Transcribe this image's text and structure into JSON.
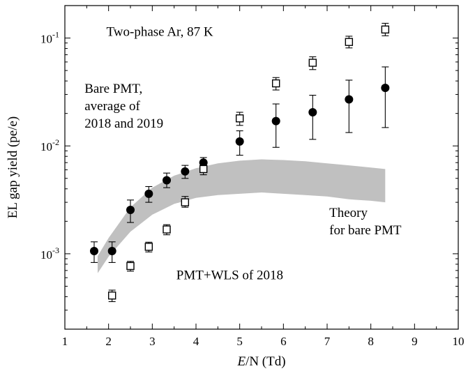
{
  "chart_data": {
    "type": "scatter",
    "title": "",
    "xlabel_italic": "E",
    "xlabel_rest": "/N (Td)",
    "ylabel": "EL gap yield (pe/e)",
    "xlim": [
      1,
      10
    ],
    "ylim": [
      0.0002,
      0.2
    ],
    "yscale": "log",
    "grid": false,
    "x_ticks": [
      1,
      2,
      3,
      4,
      5,
      6,
      7,
      8,
      9,
      10
    ],
    "x_tick_labels": [
      "1",
      "2",
      "3",
      "4",
      "5",
      "6",
      "7",
      "8",
      "9",
      "10"
    ],
    "y_major_ticks": [
      0.001,
      0.01,
      0.1
    ],
    "y_tick_labels": [
      {
        "base": "10",
        "exp": "-3"
      },
      {
        "base": "10",
        "exp": "-2"
      },
      {
        "base": "10",
        "exp": "-1"
      }
    ],
    "series": [
      {
        "marker": "filled-circle",
        "color": "#000000",
        "points": [
          {
            "x": 1.67,
            "y": 0.00106,
            "err_lo": 0.00083,
            "err_hi": 0.00129
          },
          {
            "x": 2.08,
            "y": 0.00106,
            "err_lo": 0.00083,
            "err_hi": 0.00129
          },
          {
            "x": 2.5,
            "y": 0.00255,
            "err_lo": 0.00195,
            "err_hi": 0.00315
          },
          {
            "x": 2.92,
            "y": 0.0036,
            "err_lo": 0.003,
            "err_hi": 0.0042
          },
          {
            "x": 3.33,
            "y": 0.0048,
            "err_lo": 0.0041,
            "err_hi": 0.0056
          },
          {
            "x": 3.75,
            "y": 0.0058,
            "err_lo": 0.005,
            "err_hi": 0.0066
          },
          {
            "x": 4.17,
            "y": 0.007,
            "err_lo": 0.0062,
            "err_hi": 0.0078
          },
          {
            "x": 5.0,
            "y": 0.011,
            "err_lo": 0.0082,
            "err_hi": 0.0138
          },
          {
            "x": 5.83,
            "y": 0.017,
            "err_lo": 0.0097,
            "err_hi": 0.0245
          },
          {
            "x": 6.67,
            "y": 0.0205,
            "err_lo": 0.0115,
            "err_hi": 0.0295
          },
          {
            "x": 7.5,
            "y": 0.027,
            "err_lo": 0.0133,
            "err_hi": 0.0407
          },
          {
            "x": 8.33,
            "y": 0.0345,
            "err_lo": 0.0148,
            "err_hi": 0.054
          }
        ]
      },
      {
        "marker": "open-square",
        "color": "#000000",
        "points": [
          {
            "x": 2.08,
            "y": 0.00041,
            "err_lo": 0.00036,
            "err_hi": 0.00046
          },
          {
            "x": 2.5,
            "y": 0.00077,
            "err_lo": 0.00069,
            "err_hi": 0.00085
          },
          {
            "x": 2.92,
            "y": 0.00116,
            "err_lo": 0.00104,
            "err_hi": 0.00128
          },
          {
            "x": 3.33,
            "y": 0.00168,
            "err_lo": 0.0015,
            "err_hi": 0.00186
          },
          {
            "x": 3.75,
            "y": 0.003,
            "err_lo": 0.0027,
            "err_hi": 0.0034
          },
          {
            "x": 4.17,
            "y": 0.0061,
            "err_lo": 0.0054,
            "err_hi": 0.0068
          },
          {
            "x": 5.0,
            "y": 0.018,
            "err_lo": 0.0155,
            "err_hi": 0.0205
          },
          {
            "x": 5.83,
            "y": 0.038,
            "err_lo": 0.033,
            "err_hi": 0.043
          },
          {
            "x": 6.67,
            "y": 0.059,
            "err_lo": 0.051,
            "err_hi": 0.067
          },
          {
            "x": 7.5,
            "y": 0.092,
            "err_lo": 0.081,
            "err_hi": 0.104
          },
          {
            "x": 8.33,
            "y": 0.12,
            "err_lo": 0.105,
            "err_hi": 0.137
          }
        ]
      }
    ],
    "theory_band": {
      "color": "#c0c0c0",
      "upper": [
        {
          "x": 1.75,
          "y": 0.00095
        },
        {
          "x": 2.0,
          "y": 0.0014
        },
        {
          "x": 2.5,
          "y": 0.0027
        },
        {
          "x": 3.0,
          "y": 0.0041
        },
        {
          "x": 3.5,
          "y": 0.0053
        },
        {
          "x": 4.0,
          "y": 0.0062
        },
        {
          "x": 4.5,
          "y": 0.0069
        },
        {
          "x": 5.0,
          "y": 0.0073
        },
        {
          "x": 5.5,
          "y": 0.0075
        },
        {
          "x": 6.0,
          "y": 0.0074
        },
        {
          "x": 6.5,
          "y": 0.0072
        },
        {
          "x": 7.0,
          "y": 0.0069
        },
        {
          "x": 7.5,
          "y": 0.0066
        },
        {
          "x": 8.0,
          "y": 0.0063
        },
        {
          "x": 8.33,
          "y": 0.0061
        }
      ],
      "lower": [
        {
          "x": 1.75,
          "y": 0.00066
        },
        {
          "x": 2.0,
          "y": 0.00094
        },
        {
          "x": 2.5,
          "y": 0.0016
        },
        {
          "x": 3.0,
          "y": 0.0023
        },
        {
          "x": 3.5,
          "y": 0.0029
        },
        {
          "x": 4.0,
          "y": 0.0033
        },
        {
          "x": 4.5,
          "y": 0.0035
        },
        {
          "x": 5.0,
          "y": 0.0036
        },
        {
          "x": 5.5,
          "y": 0.0037
        },
        {
          "x": 6.0,
          "y": 0.0036
        },
        {
          "x": 6.5,
          "y": 0.0035
        },
        {
          "x": 7.0,
          "y": 0.0034
        },
        {
          "x": 7.5,
          "y": 0.0032
        },
        {
          "x": 8.0,
          "y": 0.0031
        },
        {
          "x": 8.33,
          "y": 0.003
        }
      ]
    },
    "annotations": [
      {
        "lines": [
          "Two-phase Ar, 87 K"
        ],
        "x": 1.95,
        "y": 0.105
      },
      {
        "lines": [
          "Bare PMT,",
          "average of",
          "2018 and 2019"
        ],
        "x": 1.45,
        "y": 0.031
      },
      {
        "lines": [
          "Theory",
          "for bare PMT"
        ],
        "x": 7.05,
        "y": 0.0022
      },
      {
        "lines": [
          "PMT+WLS of 2018"
        ],
        "x": 3.55,
        "y": 0.00058
      }
    ]
  }
}
